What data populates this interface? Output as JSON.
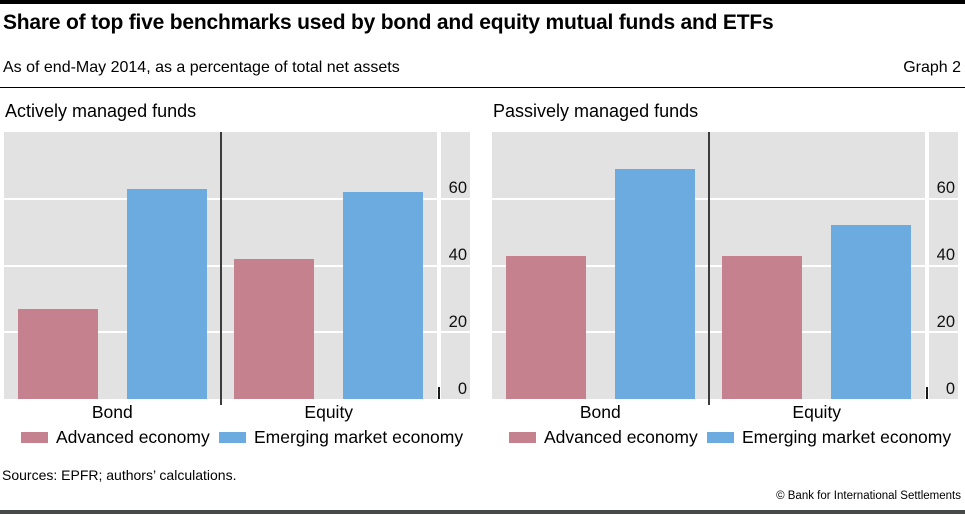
{
  "header": {
    "title": "Share of top five benchmarks used by bond and equity mutual funds and ETFs",
    "subtitle": "As of end-May 2014, as a percentage of total net assets",
    "graph_label": "Graph 2"
  },
  "footer": {
    "sources": "Sources: EPFR; authors’ calculations.",
    "copyright": "© Bank for International Settlements"
  },
  "colors": {
    "advanced_economy": "#c5818e",
    "emerging_market_economy": "#6babe0",
    "plot_background": "#e2e2e2",
    "gridline": "#ffffff",
    "group_divider": "#3c3c3c",
    "rule_top": "#000000",
    "rule_bottom": "#47494d"
  },
  "chart_data": [
    {
      "type": "bar",
      "title": "Actively managed funds",
      "categories": [
        "Bond",
        "Equity"
      ],
      "series": [
        {
          "name": "Advanced economy",
          "color": "#c5818e",
          "values": [
            27,
            42
          ]
        },
        {
          "name": "Emerging market economy",
          "color": "#6babe0",
          "values": [
            63,
            62
          ]
        }
      ],
      "ylabel": "",
      "xlabel": "",
      "ylim": [
        0,
        80
      ],
      "yticks": [
        0,
        20,
        40,
        60
      ],
      "ytick_side": "right",
      "grid": true,
      "legend_position": "bottom"
    },
    {
      "type": "bar",
      "title": "Passively managed funds",
      "categories": [
        "Bond",
        "Equity"
      ],
      "series": [
        {
          "name": "Advanced economy",
          "color": "#c5818e",
          "values": [
            43,
            43
          ]
        },
        {
          "name": "Emerging market economy",
          "color": "#6babe0",
          "values": [
            69,
            52
          ]
        }
      ],
      "ylabel": "",
      "xlabel": "",
      "ylim": [
        0,
        80
      ],
      "yticks": [
        0,
        20,
        40,
        60
      ],
      "ytick_side": "right",
      "grid": true,
      "legend_position": "bottom"
    }
  ]
}
